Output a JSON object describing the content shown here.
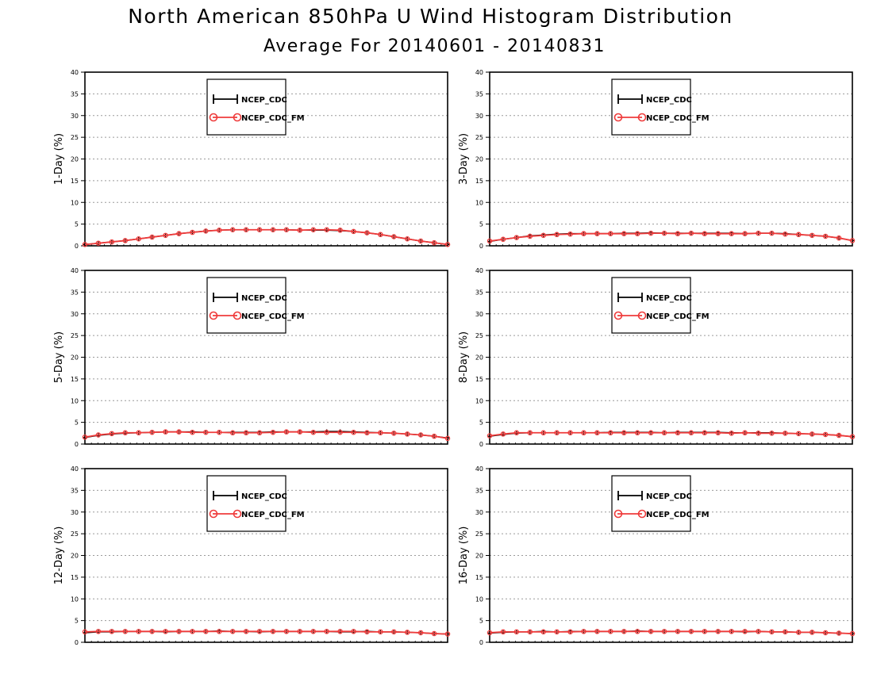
{
  "header": {
    "title": "North American 850hPa U Wind Histogram Distribution",
    "subtitle": "Average For 20140601 - 20140831"
  },
  "colors": {
    "series_a": "#000000",
    "series_b": "#ef3b3b",
    "grid": "#9a9a9a"
  },
  "chart_data": [
    {
      "type": "line",
      "ylabel": "1-Day (%)",
      "ylim": [
        0,
        40
      ],
      "yticks": [
        0,
        5,
        10,
        15,
        20,
        25,
        30,
        35,
        40
      ],
      "grid": true,
      "legend_position": "top-center",
      "series": [
        {
          "name": "NCEP_CDC",
          "marker": "plus",
          "values": [
            0.3,
            0.6,
            0.9,
            1.2,
            1.6,
            2.0,
            2.4,
            2.8,
            3.1,
            3.4,
            3.6,
            3.7,
            3.7,
            3.7,
            3.7,
            3.7,
            3.6,
            3.6,
            3.6,
            3.5,
            3.3,
            3.0,
            2.6,
            2.1,
            1.6,
            1.1,
            0.7,
            0.3
          ]
        },
        {
          "name": "NCEP_CDC_FM",
          "marker": "circle",
          "values": [
            0.3,
            0.6,
            0.9,
            1.2,
            1.6,
            2.0,
            2.4,
            2.8,
            3.1,
            3.4,
            3.6,
            3.7,
            3.7,
            3.7,
            3.7,
            3.7,
            3.6,
            3.7,
            3.7,
            3.6,
            3.3,
            3.0,
            2.6,
            2.1,
            1.6,
            1.1,
            0.7,
            0.3
          ]
        }
      ]
    },
    {
      "type": "line",
      "ylabel": "3-Day (%)",
      "ylim": [
        0,
        40
      ],
      "yticks": [
        0,
        5,
        10,
        15,
        20,
        25,
        30,
        35,
        40
      ],
      "grid": true,
      "legend_position": "top-center",
      "series": [
        {
          "name": "NCEP_CDC",
          "marker": "plus",
          "values": [
            1.0,
            1.5,
            1.9,
            2.3,
            2.5,
            2.7,
            2.8,
            2.8,
            2.8,
            2.8,
            2.9,
            2.9,
            3.0,
            2.9,
            2.9,
            2.9,
            2.9,
            2.9,
            2.9,
            2.8,
            2.9,
            2.9,
            2.8,
            2.6,
            2.4,
            2.2,
            1.8,
            1.2
          ]
        },
        {
          "name": "NCEP_CDC_FM",
          "marker": "circle",
          "values": [
            1.1,
            1.5,
            1.9,
            2.2,
            2.4,
            2.6,
            2.7,
            2.8,
            2.8,
            2.8,
            2.8,
            2.8,
            2.9,
            2.9,
            2.8,
            2.9,
            2.8,
            2.8,
            2.8,
            2.8,
            2.9,
            2.9,
            2.7,
            2.6,
            2.4,
            2.2,
            1.8,
            1.2
          ]
        }
      ]
    },
    {
      "type": "line",
      "ylabel": "5-Day (%)",
      "ylim": [
        0,
        40
      ],
      "yticks": [
        0,
        5,
        10,
        15,
        20,
        25,
        30,
        35,
        40
      ],
      "grid": true,
      "legend_position": "top-center",
      "series": [
        {
          "name": "NCEP_CDC",
          "marker": "plus",
          "values": [
            1.5,
            2.0,
            2.3,
            2.5,
            2.6,
            2.7,
            2.8,
            2.8,
            2.8,
            2.7,
            2.7,
            2.7,
            2.7,
            2.7,
            2.8,
            2.8,
            2.8,
            2.8,
            2.9,
            2.9,
            2.8,
            2.7,
            2.6,
            2.5,
            2.3,
            2.1,
            1.8,
            1.4
          ]
        },
        {
          "name": "NCEP_CDC_FM",
          "marker": "circle",
          "values": [
            1.6,
            2.1,
            2.4,
            2.6,
            2.6,
            2.7,
            2.8,
            2.8,
            2.7,
            2.7,
            2.7,
            2.6,
            2.6,
            2.6,
            2.7,
            2.8,
            2.8,
            2.7,
            2.7,
            2.7,
            2.7,
            2.6,
            2.6,
            2.5,
            2.3,
            2.1,
            1.8,
            1.3
          ]
        }
      ]
    },
    {
      "type": "line",
      "ylabel": "8-Day (%)",
      "ylim": [
        0,
        40
      ],
      "yticks": [
        0,
        5,
        10,
        15,
        20,
        25,
        30,
        35,
        40
      ],
      "grid": true,
      "legend_position": "top-center",
      "series": [
        {
          "name": "NCEP_CDC",
          "marker": "plus",
          "values": [
            1.8,
            2.2,
            2.5,
            2.6,
            2.6,
            2.6,
            2.6,
            2.6,
            2.6,
            2.7,
            2.7,
            2.7,
            2.7,
            2.6,
            2.7,
            2.7,
            2.7,
            2.7,
            2.6,
            2.6,
            2.6,
            2.6,
            2.5,
            2.4,
            2.3,
            2.2,
            2.0,
            1.7
          ]
        },
        {
          "name": "NCEP_CDC_FM",
          "marker": "circle",
          "values": [
            1.9,
            2.3,
            2.6,
            2.6,
            2.6,
            2.6,
            2.6,
            2.6,
            2.6,
            2.6,
            2.6,
            2.6,
            2.6,
            2.6,
            2.6,
            2.6,
            2.6,
            2.6,
            2.5,
            2.6,
            2.5,
            2.5,
            2.5,
            2.4,
            2.3,
            2.2,
            2.0,
            1.7
          ]
        }
      ]
    },
    {
      "type": "line",
      "ylabel": "12-Day (%)",
      "ylim": [
        0,
        40
      ],
      "yticks": [
        0,
        5,
        10,
        15,
        20,
        25,
        30,
        35,
        40
      ],
      "grid": true,
      "legend_position": "top-center",
      "series": [
        {
          "name": "NCEP_CDC",
          "marker": "plus",
          "values": [
            2.2,
            2.4,
            2.4,
            2.5,
            2.5,
            2.5,
            2.4,
            2.5,
            2.5,
            2.5,
            2.6,
            2.5,
            2.5,
            2.4,
            2.5,
            2.5,
            2.5,
            2.5,
            2.5,
            2.4,
            2.4,
            2.5,
            2.4,
            2.4,
            2.3,
            2.2,
            2.0,
            1.9
          ]
        },
        {
          "name": "NCEP_CDC_FM",
          "marker": "circle",
          "values": [
            2.4,
            2.5,
            2.5,
            2.5,
            2.5,
            2.5,
            2.5,
            2.5,
            2.5,
            2.5,
            2.5,
            2.5,
            2.5,
            2.5,
            2.5,
            2.5,
            2.5,
            2.5,
            2.5,
            2.5,
            2.5,
            2.4,
            2.4,
            2.4,
            2.3,
            2.2,
            2.0,
            1.9
          ]
        }
      ]
    },
    {
      "type": "line",
      "ylabel": "16-Day (%)",
      "ylim": [
        0,
        40
      ],
      "yticks": [
        0,
        5,
        10,
        15,
        20,
        25,
        30,
        35,
        40
      ],
      "grid": true,
      "legend_position": "top-center",
      "series": [
        {
          "name": "NCEP_CDC",
          "marker": "plus",
          "values": [
            2.1,
            2.3,
            2.4,
            2.4,
            2.5,
            2.4,
            2.5,
            2.5,
            2.5,
            2.5,
            2.5,
            2.6,
            2.5,
            2.5,
            2.5,
            2.5,
            2.5,
            2.5,
            2.5,
            2.4,
            2.5,
            2.4,
            2.4,
            2.3,
            2.3,
            2.2,
            2.1,
            2.0
          ]
        },
        {
          "name": "NCEP_CDC_FM",
          "marker": "circle",
          "values": [
            2.2,
            2.4,
            2.4,
            2.4,
            2.4,
            2.4,
            2.4,
            2.5,
            2.5,
            2.5,
            2.5,
            2.5,
            2.5,
            2.5,
            2.5,
            2.5,
            2.5,
            2.5,
            2.5,
            2.5,
            2.5,
            2.4,
            2.4,
            2.3,
            2.3,
            2.2,
            2.1,
            2.0
          ]
        }
      ]
    }
  ]
}
